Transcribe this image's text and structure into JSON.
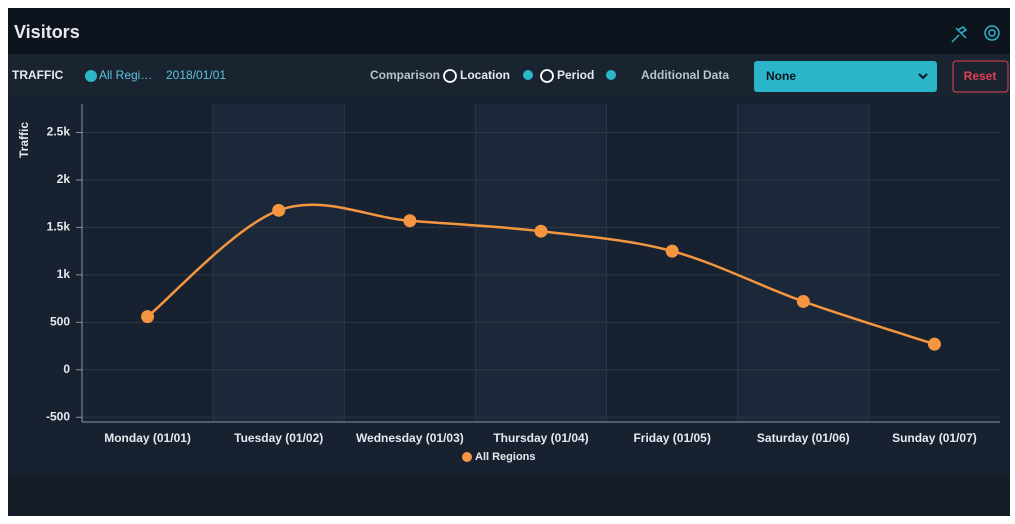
{
  "header": {
    "title": "Visitors"
  },
  "toolbar": {
    "metric": "TRAFFIC",
    "region": "All Regi…",
    "date": "2018/01/01",
    "comparison": "Comparison",
    "options": [
      "Location",
      "Period"
    ],
    "additional": "Additional Data",
    "select": "None",
    "reset": "Reset"
  },
  "chart_data": {
    "type": "line",
    "y_label": "Traffic",
    "categories": [
      "Monday (01/01)",
      "Tuesday (01/02)",
      "Wednesday (01/03)",
      "Thursday (01/04)",
      "Friday (01/05)",
      "Saturday (01/06)",
      "Sunday (01/07)"
    ],
    "series": [
      {
        "name": "All Regions",
        "color": "#f5953f",
        "values": [
          560,
          1680,
          1570,
          1460,
          1250,
          720,
          270
        ]
      }
    ],
    "ylim": [
      -550,
      2800
    ],
    "yticks": [
      -500,
      0,
      500,
      {
        "value": 1000,
        "label": "1k"
      },
      {
        "value": 1500,
        "label": "1.5k"
      },
      {
        "value": 2000,
        "label": "2k"
      },
      {
        "value": 2500,
        "label": "2.5k"
      }
    ],
    "grid": true,
    "legend": "bottom"
  }
}
